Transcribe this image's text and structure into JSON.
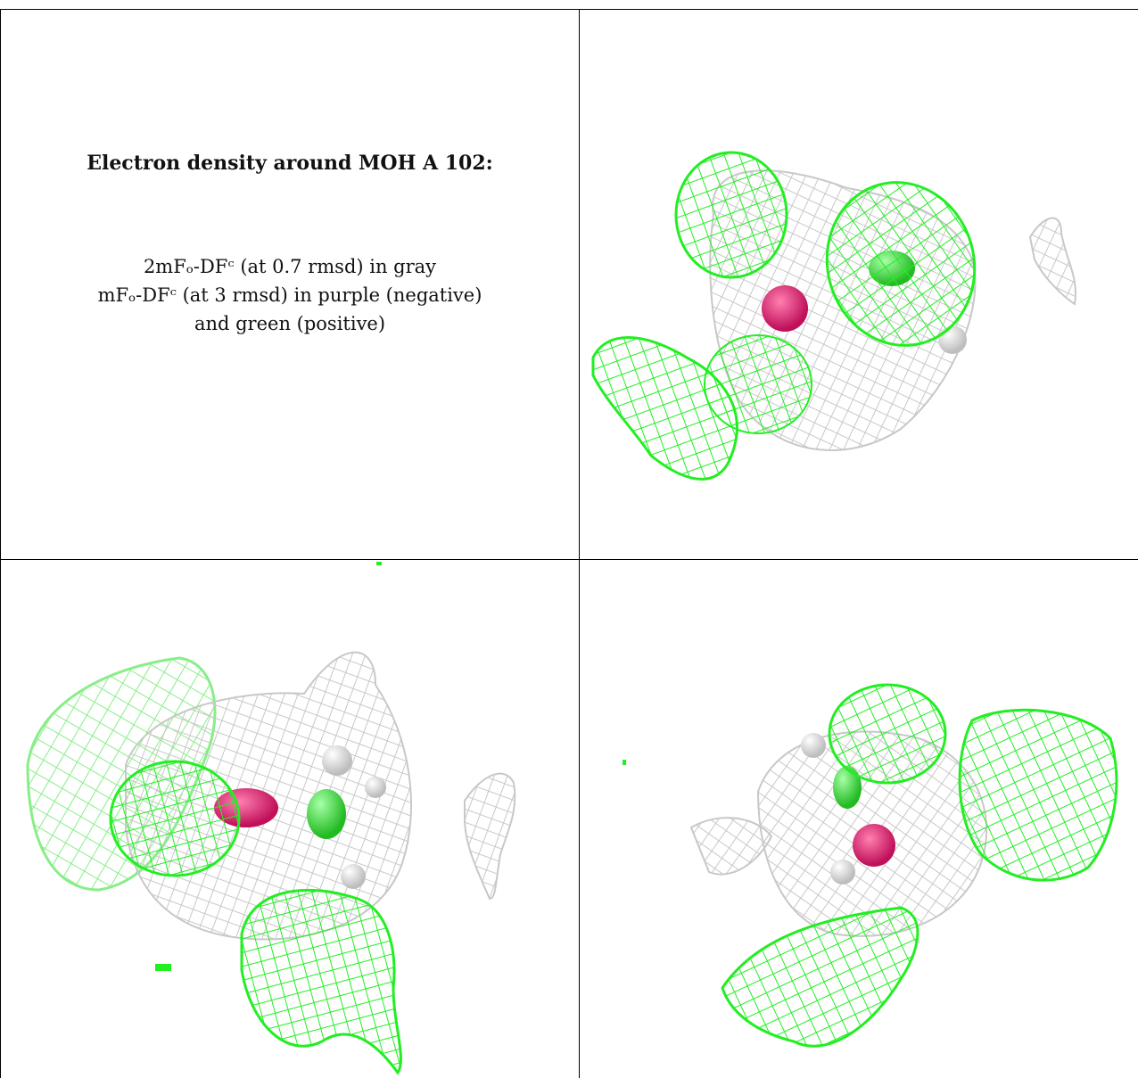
{
  "caption": {
    "title": "Electron density around MOH A 102:",
    "line1": "2mFₒ-DFᶜ (at 0.7 rmsd) in gray",
    "line2": "mFₒ-DFᶜ (at 3 rmsd) in purple (negative)",
    "line3": "and green (positive)"
  },
  "colors": {
    "mesh_gray": "#c8c8c8",
    "mesh_green": "#22ee22",
    "mesh_green_light": "#88ee88",
    "oxygen": "#e0206a",
    "carbon": "#33dd33",
    "hydrogen": "#f2f2f2"
  },
  "panels": [
    {
      "name": "view-top-right"
    },
    {
      "name": "view-bottom-left"
    },
    {
      "name": "view-bottom-right"
    }
  ]
}
